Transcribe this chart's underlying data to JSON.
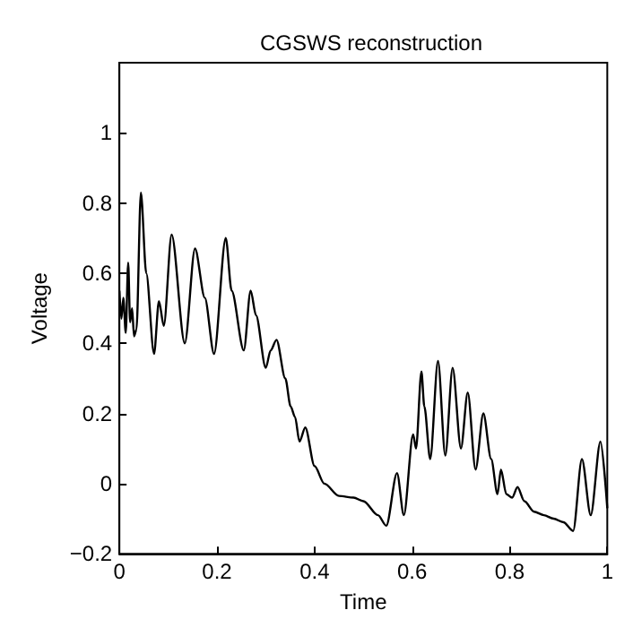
{
  "chart_data": {
    "type": "line",
    "title": "CGSWS reconstruction",
    "xlabel": "Time",
    "ylabel": "Voltage",
    "xlim": [
      0,
      1
    ],
    "ylim": [
      -0.2,
      1.2
    ],
    "xticks": [
      0,
      0.2,
      0.4,
      0.6,
      0.8,
      1
    ],
    "yticks": [
      -0.2,
      0,
      0.2,
      0.4,
      0.6,
      0.8,
      1
    ],
    "marker": "none",
    "line_style": "solid",
    "series": [
      {
        "color": "#000000",
        "x": [
          0,
          0.004,
          0.008,
          0.013,
          0.018,
          0.022,
          0.026,
          0.03,
          0.035,
          0.044,
          0.055,
          0.071,
          0.081,
          0.091,
          0.107,
          0.134,
          0.155,
          0.175,
          0.194,
          0.218,
          0.23,
          0.255,
          0.269,
          0.28,
          0.3,
          0.31,
          0.322,
          0.34,
          0.351,
          0.36,
          0.369,
          0.381,
          0.4,
          0.42,
          0.45,
          0.48,
          0.5,
          0.53,
          0.547,
          0.569,
          0.583,
          0.602,
          0.608,
          0.619,
          0.625,
          0.637,
          0.653,
          0.668,
          0.683,
          0.7,
          0.714,
          0.73,
          0.746,
          0.762,
          0.775,
          0.782,
          0.793,
          0.805,
          0.816,
          0.83,
          0.85,
          0.87,
          0.89,
          0.91,
          0.93,
          0.948,
          0.966,
          0.986,
          1
        ],
        "values": [
          0.55,
          0.47,
          0.53,
          0.43,
          0.63,
          0.46,
          0.5,
          0.42,
          0.44,
          0.83,
          0.6,
          0.37,
          0.52,
          0.45,
          0.71,
          0.4,
          0.67,
          0.53,
          0.37,
          0.7,
          0.55,
          0.38,
          0.55,
          0.48,
          0.33,
          0.38,
          0.41,
          0.3,
          0.22,
          0.19,
          0.12,
          0.16,
          0.05,
          0,
          -0.035,
          -0.04,
          -0.05,
          -0.09,
          -0.12,
          0.03,
          -0.09,
          0.14,
          0.1,
          0.32,
          0.22,
          0.07,
          0.35,
          0.08,
          0.33,
          0.1,
          0.26,
          0.04,
          0.2,
          0.07,
          -0.03,
          0.04,
          -0.03,
          -0.04,
          -0.01,
          -0.05,
          -0.08,
          -0.09,
          -0.1,
          -0.11,
          -0.135,
          0.07,
          -0.09,
          0.12,
          -0.07
        ]
      }
    ]
  }
}
